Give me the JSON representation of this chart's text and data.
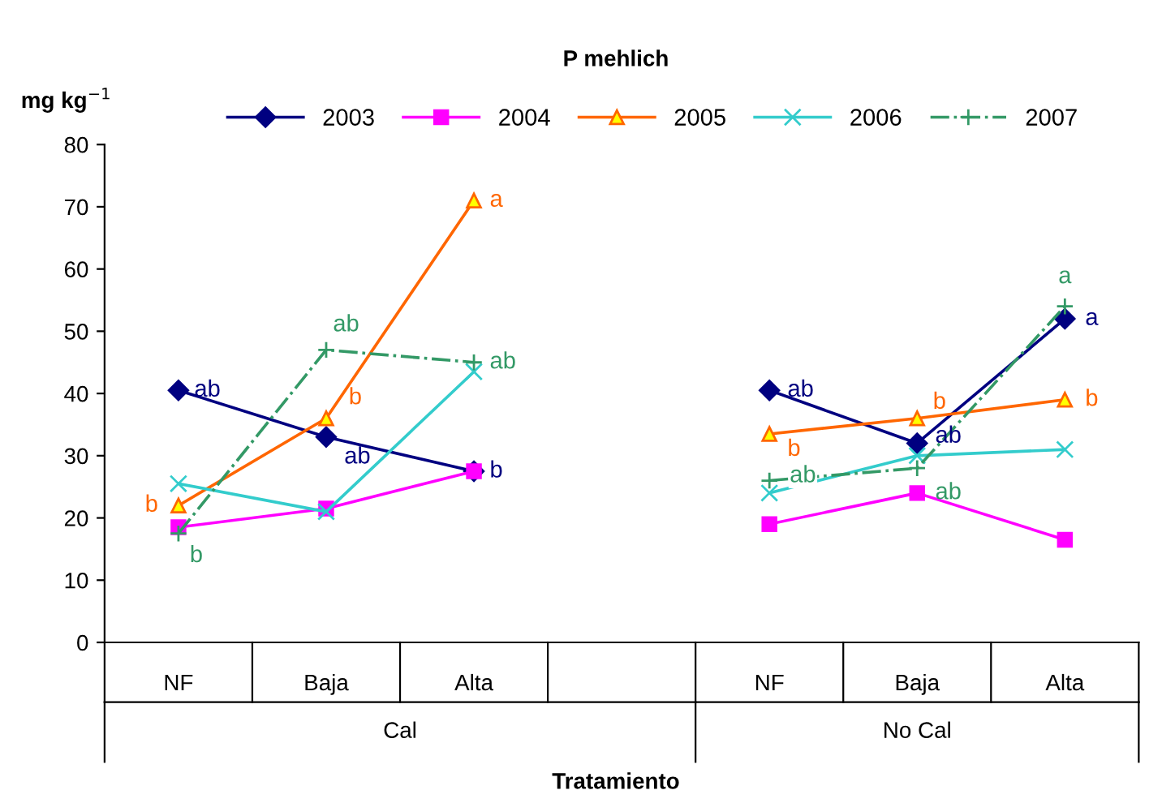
{
  "chart_data": {
    "type": "line",
    "title": "P mehlich",
    "ylabel": "mg kg$^{−1}$",
    "xlabel": "Tratamiento",
    "categories": [
      "NF",
      "Baja",
      "Alta",
      null,
      "NF",
      "Baja",
      "Alta"
    ],
    "ylim": [
      0,
      80
    ],
    "yticks": [
      0,
      10,
      20,
      30,
      40,
      50,
      60,
      70,
      80
    ],
    "grid": false,
    "legend": "top",
    "series": [
      {
        "name": "2003",
        "color": "#000080",
        "marker": "diamond",
        "line_style": "solid",
        "values": [
          40.5,
          33,
          27.5,
          null,
          40.5,
          32,
          52
        ]
      },
      {
        "name": "2004",
        "color": "#ff00ff",
        "marker": "square",
        "line_style": "solid",
        "values": [
          18.5,
          21.5,
          27.5,
          null,
          19,
          24,
          16.5
        ]
      },
      {
        "name": "2005",
        "color": "#ff6600",
        "marker": "triangle",
        "line_style": "solid",
        "values": [
          22,
          36,
          71,
          null,
          33.5,
          36,
          39
        ]
      },
      {
        "name": "2006",
        "color": "#33cccc",
        "marker": "cross",
        "line_style": "solid",
        "values": [
          25.5,
          21,
          43.5,
          null,
          24,
          30,
          31
        ]
      },
      {
        "name": "2007",
        "color": "#339966",
        "marker": "plus",
        "line_style": "dashdot",
        "values": [
          17.5,
          47,
          45,
          null,
          26,
          28,
          54
        ]
      }
    ],
    "annotations": [
      "Cal",
      "No Cal",
      {
        "text": "ab",
        "x": "NF",
        "y": 40.5
      },
      {
        "text": "ab",
        "x": "Baja",
        "y": 33
      },
      {
        "text": "b",
        "x": "Alta",
        "y": 27.5
      },
      {
        "text": "b",
        "x": "NF",
        "y": 22
      },
      {
        "text": "b",
        "x": "Baja",
        "y": 36
      },
      {
        "text": "a",
        "x": "Alta",
        "y": 71
      },
      {
        "text": "b",
        "x": "NF",
        "y": 17.5
      },
      {
        "text": "ab",
        "x": "Baja",
        "y": 47
      },
      {
        "text": "ab",
        "x": "Alta",
        "y": 45
      },
      "ab",
      "ab",
      "a",
      "b",
      "b",
      "b",
      "ab",
      "ab",
      "a"
    ]
  }
}
